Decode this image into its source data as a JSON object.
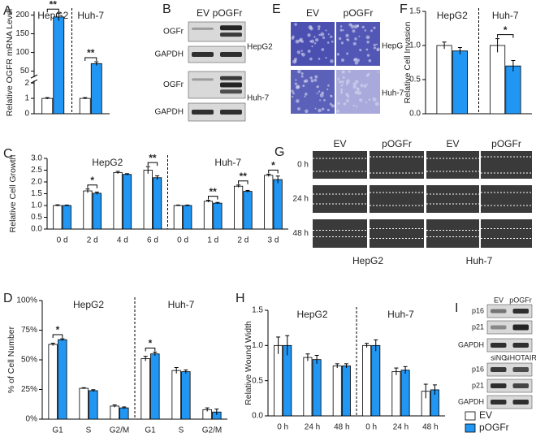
{
  "chart_data": [
    {
      "type": "bar",
      "panel": "A",
      "ylabel": "Relative OGFR mRNA Level",
      "ylim": [
        0,
        2
      ],
      "yticks": [
        0,
        1,
        2
      ],
      "y_break": {
        "ylim": [
          40,
          210
        ],
        "yticks": [
          50,
          100,
          150,
          200
        ]
      },
      "groups": [
        {
          "name": "HepG2",
          "categories": [
            null
          ]
        },
        {
          "name": "Huh-7",
          "categories": [
            null
          ]
        }
      ],
      "series": [
        {
          "values": [
            1,
            1
          ],
          "errors": [
            0.05,
            0.05
          ]
        },
        {
          "values": [
            195,
            70
          ],
          "errors": [
            10,
            5
          ]
        }
      ],
      "annotations": [
        {
          "index": 0,
          "label": "**"
        },
        {
          "index": 1,
          "label": "**"
        }
      ]
    },
    {
      "type": "bar",
      "panel": "C",
      "ylabel": "Relative Cell Growth",
      "ylim": [
        0,
        3
      ],
      "yticks": [
        {
          "value": 0,
          "label": "0.0"
        },
        {
          "value": 0.5,
          "label": "0.5"
        },
        {
          "value": 1,
          "label": "1.0"
        },
        {
          "value": 1.5,
          "label": "1.5"
        },
        {
          "value": 2,
          "label": "2.0"
        },
        {
          "value": 2.5,
          "label": "2.5"
        },
        {
          "value": 3,
          "label": "3.0"
        }
      ],
      "groups": [
        {
          "name": "HepG2",
          "categories": [
            "0 d",
            "2 d",
            "4 d",
            "6 d"
          ]
        },
        {
          "name": "Huh-7",
          "categories": [
            "0 d",
            "1 d",
            "2 d",
            "3 d"
          ]
        }
      ],
      "series": [
        {
          "values": [
            1.0,
            1.62,
            2.4,
            2.5,
            1.0,
            1.18,
            1.82,
            2.28
          ],
          "errors": [
            0.03,
            0.08,
            0.05,
            0.15,
            0.02,
            0.04,
            0.05,
            0.05
          ]
        },
        {
          "values": [
            1.0,
            1.52,
            2.32,
            2.18,
            1.0,
            1.1,
            1.6,
            2.1
          ],
          "errors": [
            0.02,
            0.05,
            0.03,
            0.08,
            0.02,
            0.03,
            0.04,
            0.15
          ]
        }
      ],
      "annotations": [
        {
          "index": 1,
          "label": "*"
        },
        {
          "index": 3,
          "label": "**"
        },
        {
          "index": 5,
          "label": "**"
        },
        {
          "index": 6,
          "label": "**"
        },
        {
          "index": 7,
          "label": "*"
        }
      ]
    },
    {
      "type": "bar",
      "panel": "D",
      "ylabel": "% of Cell Number",
      "ylim": [
        0,
        100
      ],
      "yticks": [
        {
          "value": 0,
          "label": "0%"
        },
        {
          "value": 25,
          "label": "25%"
        },
        {
          "value": 50,
          "label": "50%"
        },
        {
          "value": 75,
          "label": "75%"
        },
        {
          "value": 100,
          "label": "100%"
        }
      ],
      "groups": [
        {
          "name": "HepG2",
          "categories": [
            "G1",
            "S",
            "G2/M"
          ]
        },
        {
          "name": "Huh-7",
          "categories": [
            "G1",
            "S",
            "G2/M"
          ]
        }
      ],
      "series": [
        {
          "values": [
            63,
            26,
            11,
            51,
            41,
            8
          ],
          "errors": [
            1,
            0.5,
            1,
            2,
            2.5,
            1.5
          ]
        },
        {
          "values": [
            67,
            24,
            9.5,
            55,
            40,
            6
          ],
          "errors": [
            0.8,
            0.8,
            0.8,
            1.5,
            1.5,
            2.5
          ]
        }
      ],
      "annotations": [
        {
          "index": 0,
          "label": "*"
        },
        {
          "index": 3,
          "label": "*"
        }
      ]
    },
    {
      "type": "bar",
      "panel": "F",
      "ylabel": "Relative Cell Invasion",
      "ylim": [
        0,
        1.5
      ],
      "yticks": [
        {
          "value": 0,
          "label": "0.0"
        },
        {
          "value": 0.5,
          "label": "0.5"
        },
        {
          "value": 1,
          "label": "1.0"
        },
        {
          "value": 1.5,
          "label": "1.5"
        }
      ],
      "groups": [
        {
          "name": "HepG2",
          "categories": [
            null
          ]
        },
        {
          "name": "Huh-7",
          "categories": [
            null
          ]
        }
      ],
      "series": [
        {
          "values": [
            1.0,
            1.0
          ],
          "errors": [
            0.05,
            0.1
          ]
        },
        {
          "values": [
            0.92,
            0.7
          ],
          "errors": [
            0.05,
            0.08
          ]
        }
      ],
      "annotations": [
        {
          "index": 1,
          "label": "*"
        }
      ]
    },
    {
      "type": "bar",
      "panel": "H",
      "ylabel": "Relative Wound Width",
      "ylim": [
        0,
        1.5
      ],
      "yticks": [
        {
          "value": 0,
          "label": "0.0"
        },
        {
          "value": 0.5,
          "label": "0.5"
        },
        {
          "value": 1,
          "label": "1.0"
        },
        {
          "value": 1.5,
          "label": "1.5"
        }
      ],
      "groups": [
        {
          "name": "HepG2",
          "categories": [
            "0 h",
            "24 h",
            "48 h"
          ]
        },
        {
          "name": "Huh-7",
          "categories": [
            "0 h",
            "24 h",
            "48 h"
          ]
        }
      ],
      "series": [
        {
          "values": [
            1.0,
            0.83,
            0.71,
            1.0,
            0.63,
            0.35
          ],
          "errors": [
            0.12,
            0.05,
            0.03,
            0.03,
            0.05,
            0.1
          ]
        },
        {
          "values": [
            1.0,
            0.8,
            0.71,
            1.0,
            0.65,
            0.37
          ],
          "errors": [
            0.14,
            0.06,
            0.03,
            0.08,
            0.05,
            0.07
          ]
        }
      ],
      "annotations": []
    }
  ],
  "legend": [
    {
      "name": "EV",
      "color": "#ffffff"
    },
    {
      "name": "pOGFr",
      "color": "#2196f3"
    }
  ],
  "panels": {
    "B": {
      "letter": "B",
      "columns": [
        "EV",
        "pOGFr"
      ],
      "rows": [
        "OGFr",
        "GAPDH",
        "OGFr",
        "GAPDH"
      ],
      "cell_lines": [
        "HepG2",
        "Huh-7"
      ]
    },
    "E": {
      "letter": "E",
      "columns": [
        "EV",
        "pOGFr"
      ],
      "rows": [
        "HepG",
        "Huh-7"
      ]
    },
    "G": {
      "letter": "G",
      "columns": [
        "EV",
        "pOGFr",
        "EV",
        "pOGFr"
      ],
      "rows": [
        "0 h",
        "24 h",
        "48 h"
      ],
      "cell_lines": [
        "HepG2",
        "Huh-7"
      ]
    },
    "I": {
      "letter": "I",
      "blocks": [
        {
          "columns": [
            "EV",
            "pOGFr"
          ],
          "rows": [
            "p16",
            "p21",
            "GAPDH"
          ]
        },
        {
          "columns": [
            "siNC",
            "siHOTAIR"
          ],
          "rows": [
            "p16",
            "p21",
            "GAPDH"
          ]
        }
      ]
    }
  }
}
